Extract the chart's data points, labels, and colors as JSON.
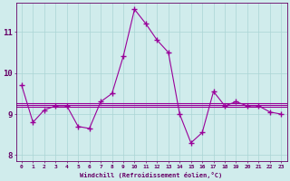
{
  "x": [
    0,
    1,
    2,
    3,
    4,
    5,
    6,
    7,
    8,
    9,
    10,
    11,
    12,
    13,
    14,
    15,
    16,
    17,
    18,
    19,
    20,
    21,
    22,
    23
  ],
  "y": [
    9.7,
    8.8,
    9.1,
    9.2,
    9.2,
    8.7,
    8.65,
    9.3,
    9.5,
    10.4,
    11.55,
    11.2,
    10.8,
    10.5,
    9.0,
    8.3,
    8.55,
    9.55,
    9.2,
    9.3,
    9.2,
    9.2,
    9.05,
    9.0
  ],
  "hlines": [
    9.17,
    9.22,
    9.27
  ],
  "hline_lengths": [
    13,
    23,
    10
  ],
  "line_color": "#990099",
  "bg_color": "#d0ecec",
  "grid_color": "#aad4d4",
  "axis_color": "#660066",
  "xlabel": "Windchill (Refroidissement éolien,°C)",
  "yticks": [
    8,
    9,
    10,
    11
  ],
  "ylim": [
    7.85,
    11.7
  ],
  "xlim": [
    -0.5,
    23.5
  ]
}
